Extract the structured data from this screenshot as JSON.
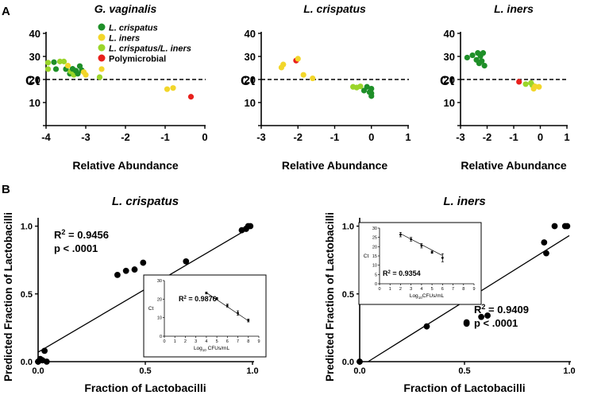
{
  "panels": {
    "A": "A",
    "B": "B"
  },
  "legend": [
    {
      "label": "L. crispatus",
      "color": "#1e8f28"
    },
    {
      "label": "L. iners",
      "color": "#f2d62a"
    },
    {
      "label": "L. crispatus/L. iners",
      "color": "#9ad52a"
    },
    {
      "label": "Polymicrobial",
      "color": "#e8201c"
    }
  ],
  "chart_data": [
    {
      "type": "scatter",
      "title": "G. vaginalis",
      "xlabel": "Relative Abundance",
      "ylabel": "Ct",
      "xlim": [
        -4,
        0
      ],
      "ylim": [
        0,
        40
      ],
      "xticks": [
        "-4",
        "-3",
        "-2",
        "-1",
        "0"
      ],
      "yticks": [
        "0",
        "10",
        "20",
        "30",
        "40"
      ],
      "threshold": 20,
      "points": [
        {
          "x": -3.95,
          "y": 24.5,
          "g": "L. crispatus/L. iners"
        },
        {
          "x": -3.95,
          "y": 27.3,
          "g": "L. crispatus/L. iners"
        },
        {
          "x": -3.8,
          "y": 27.5,
          "g": "L. crispatus"
        },
        {
          "x": -3.75,
          "y": 24.5,
          "g": "L. crispatus"
        },
        {
          "x": -3.65,
          "y": 27.8,
          "g": "L. crispatus/L. iners"
        },
        {
          "x": -3.55,
          "y": 27.8,
          "g": "L. crispatus/L. iners"
        },
        {
          "x": -3.5,
          "y": 24.5,
          "g": "L. crispatus"
        },
        {
          "x": -3.45,
          "y": 26.0,
          "g": "L. iners"
        },
        {
          "x": -3.4,
          "y": 22.5,
          "g": "L. crispatus"
        },
        {
          "x": -3.38,
          "y": 23.5,
          "g": "L. crispatus/L. iners"
        },
        {
          "x": -3.33,
          "y": 24.6,
          "g": "L. crispatus"
        },
        {
          "x": -3.3,
          "y": 22.0,
          "g": "L. crispatus/L. iners"
        },
        {
          "x": -3.25,
          "y": 23.8,
          "g": "L. crispatus"
        },
        {
          "x": -3.2,
          "y": 22.5,
          "g": "L. crispatus"
        },
        {
          "x": -3.15,
          "y": 25.8,
          "g": "L. crispatus"
        },
        {
          "x": -3.1,
          "y": 24.0,
          "g": "L. crispatus"
        },
        {
          "x": -3.05,
          "y": 23.2,
          "g": "L. iners"
        },
        {
          "x": -3.0,
          "y": 22.0,
          "g": "L. iners"
        },
        {
          "x": -2.65,
          "y": 21.0,
          "g": "L. crispatus/L. iners"
        },
        {
          "x": -2.6,
          "y": 24.5,
          "g": "L. iners"
        },
        {
          "x": -0.95,
          "y": 15.8,
          "g": "L. iners"
        },
        {
          "x": -0.8,
          "y": 16.3,
          "g": "L. iners"
        },
        {
          "x": -0.35,
          "y": 12.5,
          "g": "Polymicrobial"
        }
      ]
    },
    {
      "type": "scatter",
      "title": "L. crispatus",
      "xlabel": "Relative Abundance",
      "ylabel": "Ct",
      "xlim": [
        -3,
        1
      ],
      "ylim": [
        0,
        40
      ],
      "xticks": [
        "-3",
        "-2",
        "-1",
        "0",
        "1"
      ],
      "yticks": [
        "0",
        "10",
        "20",
        "30",
        "40"
      ],
      "threshold": 20,
      "points": [
        {
          "x": -2.45,
          "y": 25.2,
          "g": "L. iners"
        },
        {
          "x": -2.4,
          "y": 26.5,
          "g": "L. iners"
        },
        {
          "x": -2.05,
          "y": 28.2,
          "g": "Polymicrobial"
        },
        {
          "x": -2.0,
          "y": 29.0,
          "g": "L. iners"
        },
        {
          "x": -1.85,
          "y": 22.0,
          "g": "L. iners"
        },
        {
          "x": -1.6,
          "y": 20.5,
          "g": "L. iners"
        },
        {
          "x": -0.5,
          "y": 16.8,
          "g": "L. crispatus/L. iners"
        },
        {
          "x": -0.4,
          "y": 16.5,
          "g": "L. crispatus/L. iners"
        },
        {
          "x": -0.3,
          "y": 17.0,
          "g": "L. crispatus/L. iners"
        },
        {
          "x": -0.2,
          "y": 15.2,
          "g": "L. crispatus"
        },
        {
          "x": -0.12,
          "y": 16.8,
          "g": "L. crispatus"
        },
        {
          "x": -0.05,
          "y": 14.5,
          "g": "L. crispatus"
        },
        {
          "x": 0.0,
          "y": 16.0,
          "g": "L. crispatus"
        },
        {
          "x": 0.0,
          "y": 14.0,
          "g": "L. crispatus"
        },
        {
          "x": 0.0,
          "y": 12.8,
          "g": "L. crispatus"
        }
      ]
    },
    {
      "type": "scatter",
      "title": "L. iners",
      "xlabel": "Relative Abundance",
      "ylabel": "Ct",
      "xlim": [
        -3,
        1
      ],
      "ylim": [
        0,
        40
      ],
      "xticks": [
        "-3",
        "-2",
        "-1",
        "0",
        "1"
      ],
      "yticks": [
        "0",
        "10",
        "20",
        "30",
        "40"
      ],
      "threshold": 20,
      "points": [
        {
          "x": -2.75,
          "y": 29.5,
          "g": "L. crispatus"
        },
        {
          "x": -2.55,
          "y": 30.5,
          "g": "L. crispatus"
        },
        {
          "x": -2.4,
          "y": 28.5,
          "g": "L. crispatus"
        },
        {
          "x": -2.35,
          "y": 31.5,
          "g": "L. crispatus"
        },
        {
          "x": -2.3,
          "y": 27.0,
          "g": "L. crispatus"
        },
        {
          "x": -2.25,
          "y": 30.2,
          "g": "L. crispatus"
        },
        {
          "x": -2.2,
          "y": 28.0,
          "g": "L. crispatus"
        },
        {
          "x": -2.15,
          "y": 31.5,
          "g": "L. crispatus"
        },
        {
          "x": -2.1,
          "y": 26.0,
          "g": "L. crispatus"
        },
        {
          "x": -0.8,
          "y": 19.0,
          "g": "Polymicrobial"
        },
        {
          "x": -0.55,
          "y": 18.0,
          "g": "L. crispatus/L. iners"
        },
        {
          "x": -0.35,
          "y": 18.5,
          "g": "L. crispatus/L. iners"
        },
        {
          "x": -0.3,
          "y": 17.5,
          "g": "L. crispatus/L. iners"
        },
        {
          "x": -0.25,
          "y": 16.0,
          "g": "L. iners"
        },
        {
          "x": -0.2,
          "y": 17.0,
          "g": "L. iners"
        },
        {
          "x": -0.05,
          "y": 16.8,
          "g": "L. iners"
        }
      ]
    },
    {
      "type": "scatter",
      "title": "L. crispatus",
      "xlabel": "Fraction of Lactobacilli",
      "ylabel": "Predicted Fraction of Lactobacilli",
      "xlim": [
        0,
        1
      ],
      "ylim": [
        0,
        1.05
      ],
      "xticks": [
        "0.0",
        "0.5",
        "1.0"
      ],
      "yticks": [
        "0.0",
        "0.5",
        "1.0"
      ],
      "stats": {
        "r2_label": "R",
        "r2_sup": "2",
        "r2_value": " = 0.9456",
        "p": "p < .0001"
      },
      "fit": {
        "x": [
          0,
          1
        ],
        "y": [
          0.07,
          1.0
        ]
      },
      "points": [
        {
          "x": 0.0,
          "y": 0.0
        },
        {
          "x": 0.01,
          "y": 0.02
        },
        {
          "x": 0.02,
          "y": 0.01
        },
        {
          "x": 0.03,
          "y": 0.08
        },
        {
          "x": 0.04,
          "y": 0.0
        },
        {
          "x": 0.37,
          "y": 0.64
        },
        {
          "x": 0.41,
          "y": 0.67
        },
        {
          "x": 0.45,
          "y": 0.68
        },
        {
          "x": 0.49,
          "y": 0.73
        },
        {
          "x": 0.69,
          "y": 0.74
        },
        {
          "x": 0.95,
          "y": 0.97
        },
        {
          "x": 0.97,
          "y": 0.98
        },
        {
          "x": 0.98,
          "y": 1.0
        },
        {
          "x": 0.99,
          "y": 1.0
        }
      ],
      "inset": {
        "r2_label": "R",
        "r2_sup": "2",
        "r2_value": " = 0.9876",
        "ylabel": "Ct",
        "xlabel_pre": "Log",
        "xlabel_sub": "10",
        "xlabel_post": " CFUs/mL",
        "xlim": [
          0,
          9
        ],
        "ylim": [
          0,
          30
        ],
        "xticks": [
          "0",
          "1",
          "2",
          "3",
          "4",
          "5",
          "6",
          "7",
          "8",
          "9"
        ],
        "yticks": [
          "0",
          "10",
          "20",
          "30"
        ],
        "x": [
          4,
          5,
          6,
          7,
          8
        ],
        "y": [
          23.3,
          20.3,
          16.5,
          12.5,
          8.5
        ],
        "err": [
          0.5,
          0.6,
          0.8,
          1.2,
          0.8
        ],
        "fit": {
          "x": [
            4,
            8
          ],
          "y": [
            23.5,
            8.3
          ]
        }
      }
    },
    {
      "type": "scatter",
      "title": "L. iners",
      "xlabel": "Fraction of Lactobacilli",
      "ylabel": "Predicted Fraction of Lactobacilli",
      "xlim": [
        0,
        1
      ],
      "ylim": [
        0,
        1.05
      ],
      "xticks": [
        "0.0",
        "0.5",
        "1.0"
      ],
      "yticks": [
        "0.0",
        "0.5",
        "1.0"
      ],
      "stats": {
        "r2_label": "R",
        "r2_sup": "2",
        "r2_value": " = 0.9409",
        "p": "p < .0001"
      },
      "fit": {
        "x": [
          0.04,
          1.0
        ],
        "y": [
          0.0,
          0.93
        ]
      },
      "points": [
        {
          "x": 0.0,
          "y": 0.0
        },
        {
          "x": 0.32,
          "y": 0.26
        },
        {
          "x": 0.51,
          "y": 0.28
        },
        {
          "x": 0.51,
          "y": 0.29
        },
        {
          "x": 0.58,
          "y": 0.33
        },
        {
          "x": 0.61,
          "y": 0.34
        },
        {
          "x": 0.88,
          "y": 0.88
        },
        {
          "x": 0.89,
          "y": 0.8
        },
        {
          "x": 0.93,
          "y": 1.0
        },
        {
          "x": 0.98,
          "y": 1.0
        },
        {
          "x": 0.99,
          "y": 1.0
        }
      ],
      "inset": {
        "r2_label": "R",
        "r2_sup": "2",
        "r2_value": " = 0.9354",
        "ylabel": "Ct",
        "xlabel_pre": "Log",
        "xlabel_sub": "10",
        "xlabel_post": "CFUs/mL",
        "xlim": [
          0,
          9
        ],
        "ylim": [
          0,
          30
        ],
        "xticks": [
          "0",
          "1",
          "2",
          "3",
          "4",
          "5",
          "6",
          "7",
          "8",
          "9"
        ],
        "yticks": [
          "0",
          "5",
          "10",
          "15",
          "20",
          "25",
          "30"
        ],
        "x": [
          2,
          3,
          4,
          5,
          6
        ],
        "y": [
          26.5,
          24.0,
          20.5,
          17.0,
          14.0
        ],
        "err": [
          1.2,
          1.0,
          1.2,
          0.6,
          2.2
        ],
        "fit": {
          "x": [
            2,
            6
          ],
          "y": [
            27.0,
            15.2
          ]
        }
      }
    }
  ]
}
